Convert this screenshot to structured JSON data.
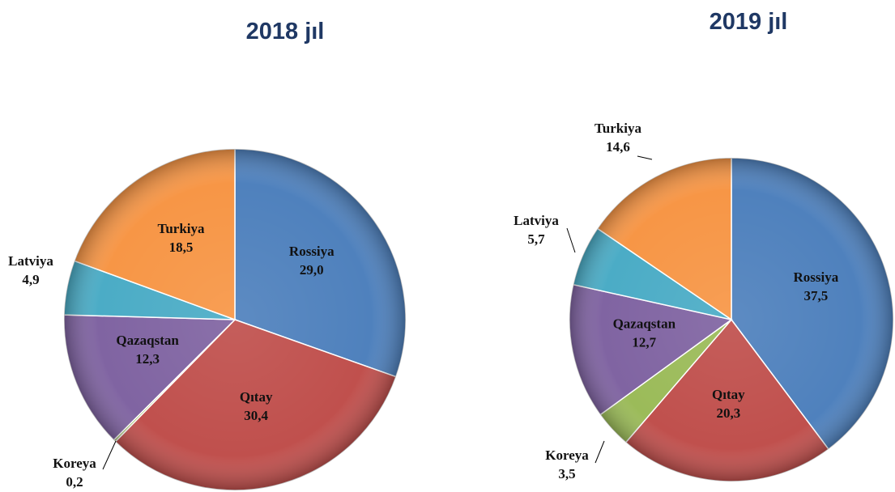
{
  "chart_data": [
    {
      "type": "pie",
      "title": "2018 jıl",
      "categories": [
        "Rossiya",
        "Qıtay",
        "Koreya",
        "Qazaqstan",
        "Latviya",
        "Turkiya"
      ],
      "values": [
        29.0,
        30.4,
        0.2,
        12.3,
        4.9,
        18.5
      ],
      "value_labels": [
        "29,0",
        "30,4",
        "0,2",
        "12,3",
        "4,9",
        "18,5"
      ],
      "colors": [
        "#4f81bd",
        "#c0504d",
        "#9bbb59",
        "#8064a2",
        "#4bacc6",
        "#f79646"
      ]
    },
    {
      "type": "pie",
      "title": "2019 jıl",
      "categories": [
        "Rossiya",
        "Qıtay",
        "Koreya",
        "Qazaqstan",
        "Latviya",
        "Turkiya"
      ],
      "values": [
        37.5,
        20.3,
        3.5,
        12.7,
        5.7,
        14.6
      ],
      "value_labels": [
        "37,5",
        "20,3",
        "3,5",
        "12,7",
        "5,7",
        "14,6"
      ],
      "colors": [
        "#4f81bd",
        "#c0504d",
        "#9bbb59",
        "#8064a2",
        "#4bacc6",
        "#f79646"
      ]
    }
  ]
}
